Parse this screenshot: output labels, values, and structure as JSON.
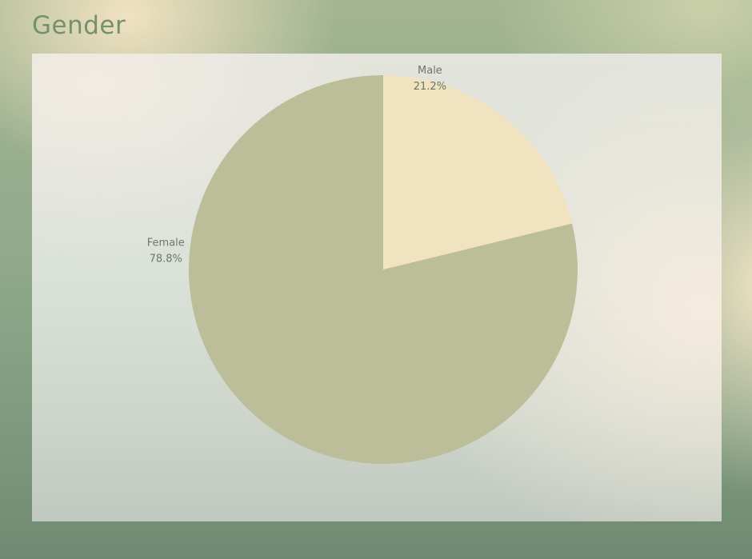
{
  "slide": {
    "title": "Gender"
  },
  "chart_data": {
    "type": "pie",
    "categories": [
      "Male",
      "Female"
    ],
    "values": [
      21.2,
      78.8
    ],
    "value_labels": [
      "21.2%",
      "78.8%"
    ],
    "colors": [
      "#f1e2c0",
      "#bbbe98"
    ],
    "start": "12 o'clock",
    "direction": "clockwise",
    "legend": "none"
  }
}
